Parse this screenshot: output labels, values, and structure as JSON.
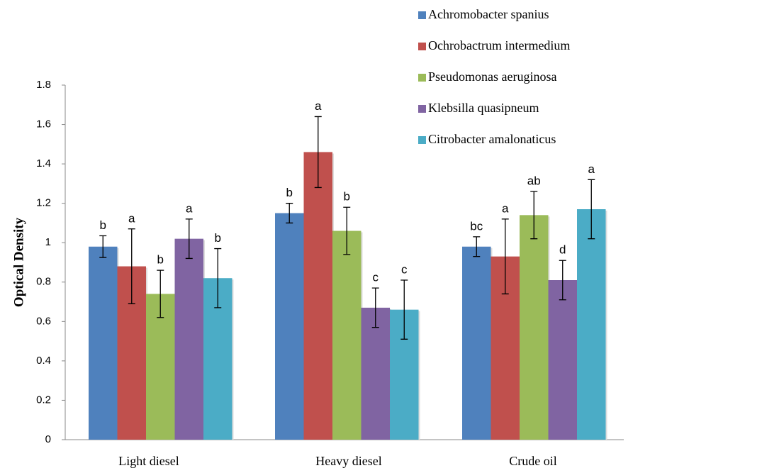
{
  "chart_data": {
    "type": "bar",
    "y_label": "Optical Density",
    "categories": [
      "Light diesel",
      "Heavy diesel",
      "Crude oil"
    ],
    "series": [
      {
        "name": "Achromobacter spanius",
        "color": "#4f81bd",
        "values": [
          0.98,
          1.15,
          0.98
        ],
        "errors": [
          0.055,
          0.05,
          0.05
        ],
        "labels": [
          "b",
          "b",
          "bc"
        ]
      },
      {
        "name": "Ochrobactrum intermedium",
        "color": "#c0504d",
        "values": [
          0.88,
          1.46,
          0.93
        ],
        "errors": [
          0.19,
          0.18,
          0.19
        ],
        "labels": [
          "a",
          "a",
          "a"
        ]
      },
      {
        "name": "Pseudomonas aeruginosa",
        "color": "#9bbb59",
        "values": [
          0.74,
          1.06,
          1.14
        ],
        "errors": [
          0.12,
          0.12,
          0.12
        ],
        "labels": [
          "b",
          "b",
          "ab"
        ]
      },
      {
        "name": "Klebsilla quasipneum",
        "color": "#8064a2",
        "values": [
          1.02,
          0.67,
          0.81
        ],
        "errors": [
          0.1,
          0.1,
          0.1
        ],
        "labels": [
          "a",
          "c",
          "d"
        ]
      },
      {
        "name": "Citrobacter amalonaticus",
        "color": "#4bacc6",
        "values": [
          0.82,
          0.66,
          1.17
        ],
        "errors": [
          0.15,
          0.15,
          0.15
        ],
        "labels": [
          "b",
          "c",
          "a"
        ]
      }
    ],
    "ylim": [
      0,
      1.8
    ],
    "yticks": [
      0,
      0.2,
      0.4,
      0.6,
      0.8,
      1,
      1.2,
      1.4,
      1.6,
      1.8
    ],
    "grid": false
  }
}
